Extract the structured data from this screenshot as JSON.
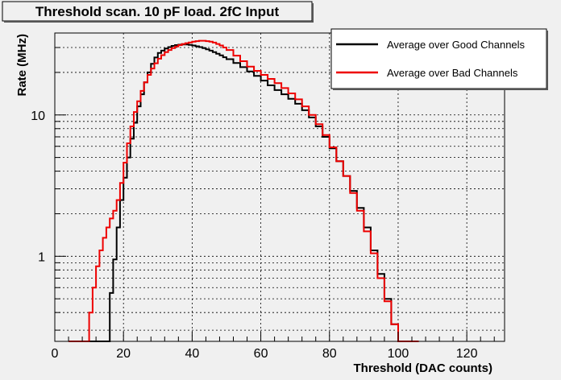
{
  "chart_data": {
    "type": "line",
    "title": "Threshold scan. 10 pF load. 2fC Input",
    "xlabel": "Threshold (DAC counts)",
    "ylabel": "Rate (MHz)",
    "xlim": [
      0,
      131
    ],
    "ylim": [
      0.25,
      38
    ],
    "yscale": "log",
    "grid": true,
    "legend_position": "top-right",
    "x_ticks": [
      0,
      20,
      40,
      60,
      80,
      100,
      120
    ],
    "y_tick_labels": [
      {
        "value": 1,
        "label": "1"
      },
      {
        "value": 10,
        "label": "10"
      }
    ],
    "series": [
      {
        "name": "Average over Good Channels",
        "color": "#000000",
        "x": [
          15,
          16,
          17,
          18,
          19,
          20,
          21,
          22,
          23,
          24,
          25,
          26,
          27,
          28,
          29,
          30,
          31,
          32,
          33,
          34,
          35,
          36,
          37,
          38,
          39,
          40,
          41,
          42,
          43,
          44,
          45,
          46,
          47,
          48,
          49,
          50,
          52,
          54,
          56,
          58,
          60,
          62,
          64,
          66,
          68,
          70,
          72,
          74,
          76,
          78,
          80,
          82,
          84,
          86,
          88,
          90,
          92,
          94,
          96,
          98,
          100,
          101
        ],
        "y": [
          0.25,
          0.55,
          0.95,
          1.6,
          2.5,
          3.6,
          5.0,
          6.8,
          8.8,
          11.5,
          14.0,
          17.0,
          20.0,
          23.0,
          25.5,
          27.5,
          28.5,
          29.5,
          30.2,
          30.8,
          31.2,
          31.4,
          31.5,
          31.5,
          31.3,
          31.0,
          30.6,
          30.2,
          29.7,
          29.1,
          28.5,
          27.8,
          27.1,
          26.4,
          25.6,
          24.8,
          23.3,
          21.8,
          20.3,
          18.9,
          17.5,
          16.2,
          15.0,
          14.0,
          13.0,
          12.0,
          10.8,
          9.6,
          8.3,
          7.0,
          5.8,
          4.7,
          3.7,
          2.9,
          2.2,
          1.6,
          1.1,
          0.75,
          0.5,
          0.33,
          0.25,
          0.25
        ]
      },
      {
        "name": "Average over Bad Channels",
        "color": "#ee0000",
        "x": [
          9,
          10,
          11,
          12,
          13,
          14,
          15,
          16,
          17,
          18,
          19,
          20,
          21,
          22,
          23,
          24,
          25,
          26,
          27,
          28,
          29,
          30,
          31,
          32,
          33,
          34,
          35,
          36,
          37,
          38,
          39,
          40,
          41,
          42,
          43,
          44,
          45,
          46,
          47,
          48,
          49,
          50,
          52,
          54,
          56,
          58,
          60,
          62,
          64,
          66,
          68,
          70,
          72,
          74,
          76,
          78,
          80,
          82,
          84,
          86,
          88,
          90,
          92,
          94,
          96,
          98,
          100,
          101
        ],
        "y": [
          0.25,
          0.4,
          0.6,
          0.85,
          1.1,
          1.35,
          1.6,
          1.85,
          2.1,
          2.5,
          3.3,
          4.6,
          6.3,
          8.3,
          10.5,
          12.5,
          14.8,
          17.0,
          19.2,
          21.3,
          23.2,
          25.0,
          26.5,
          27.8,
          28.8,
          29.7,
          30.5,
          31.2,
          31.8,
          32.2,
          32.6,
          33.0,
          33.3,
          33.5,
          33.5,
          33.3,
          33.0,
          32.5,
          31.8,
          31.0,
          30.0,
          28.8,
          26.3,
          24.0,
          22.0,
          20.5,
          19.2,
          18.0,
          16.8,
          15.5,
          14.2,
          12.9,
          11.5,
          10.0,
          8.6,
          7.2,
          5.9,
          4.7,
          3.7,
          2.8,
          2.1,
          1.5,
          1.05,
          0.7,
          0.48,
          0.33,
          0.25,
          0.25
        ]
      }
    ]
  }
}
